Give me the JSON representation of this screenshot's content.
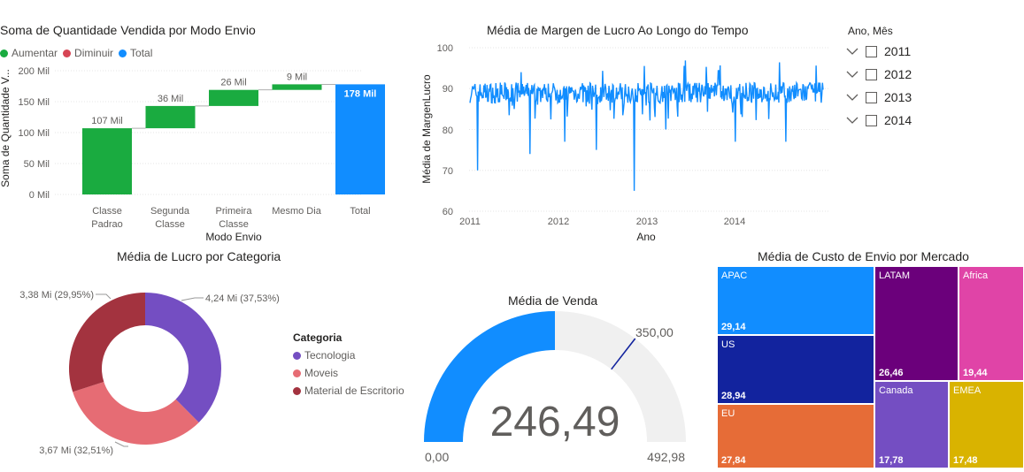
{
  "waterfall": {
    "title": "Soma de Quantidade Vendida por Modo Envio",
    "legend": [
      {
        "label": "Aumentar",
        "color": "#1aab40"
      },
      {
        "label": "Diminuir",
        "color": "#d64554"
      },
      {
        "label": "Total",
        "color": "#118dff"
      }
    ],
    "y_title": "Soma de Quantidade V...",
    "x_title": "Modo Envio",
    "y_ticks": [
      "200 Mil",
      "150 Mil",
      "100 Mil",
      "50 Mil",
      "0 Mil"
    ],
    "cat_lines": [
      [
        "Classe",
        "Padrao"
      ],
      [
        "Segunda",
        "Classe"
      ],
      [
        "Primeira",
        "Classe"
      ],
      [
        "Mesmo Dia",
        ""
      ],
      [
        "Total",
        ""
      ]
    ]
  },
  "line": {
    "title": "Média de Margen de Lucro Ao Longo do Tempo",
    "y_title": "Média de MargenLucro",
    "x_title": "Ano",
    "y_ticks": [
      "100",
      "90",
      "80",
      "70",
      "60"
    ],
    "x_ticks": [
      "2011",
      "2012",
      "2013",
      "2014"
    ],
    "color": "#118dff"
  },
  "slicer": {
    "title": "Ano, Mês",
    "items": [
      "2011",
      "2012",
      "2013",
      "2014"
    ]
  },
  "donut": {
    "title": "Média de Lucro por Categoria",
    "legend_title": "Categoria",
    "slice_labels": [
      "4,24 Mi (37,53%)",
      "3,67 Mi (32,51%)",
      "3,38 Mi (29,95%)"
    ],
    "legend": [
      {
        "label": "Tecnologia",
        "color": "#744ec2"
      },
      {
        "label": "Moveis",
        "color": "#e66c74"
      },
      {
        "label": "Material de Escritorio",
        "color": "#a3333f"
      }
    ]
  },
  "gauge": {
    "title": "Média de Venda",
    "value_text": "246,49",
    "min_text": "0,00",
    "max_text": "492,98",
    "target_text": "350,00",
    "fill_color": "#118dff",
    "track_color": "#f0f0f0"
  },
  "treemap": {
    "title": "Média de Custo de Envio por Mercado",
    "cells": [
      {
        "label": "APAC",
        "value": "29,14",
        "color": "#118dff"
      },
      {
        "label": "US",
        "value": "28,94",
        "color": "#12239e"
      },
      {
        "label": "EU",
        "value": "27,84",
        "color": "#e66c37"
      },
      {
        "label": "LATAM",
        "value": "26,46",
        "color": "#6b007b"
      },
      {
        "label": "Africa",
        "value": "19,44",
        "color": "#e044a7"
      },
      {
        "label": "Canada",
        "value": "17,78",
        "color": "#744ec2"
      },
      {
        "label": "EMEA",
        "value": "17,48",
        "color": "#d9b300"
      }
    ]
  },
  "chart_data": [
    {
      "type": "bar",
      "title": "Soma de Quantidade Vendida por Modo Envio",
      "xlabel": "Modo Envio",
      "ylabel": "Soma de Quantidade V...",
      "categories": [
        "Classe Padrao",
        "Segunda Classe",
        "Primeira Classe",
        "Mesmo Dia",
        "Total"
      ],
      "values": [
        107,
        36,
        26,
        9,
        178
      ],
      "data_labels": [
        "107 Mil",
        "36 Mil",
        "26 Mil",
        "9 Mil",
        "178 Mil"
      ],
      "ylim": [
        0,
        200
      ]
    },
    {
      "type": "line",
      "title": "Média de Margen de Lucro Ao Longo do Tempo",
      "xlabel": "Ano",
      "ylabel": "Média de MargenLucro",
      "ylim": [
        60,
        100
      ],
      "x_range": [
        "2011",
        "2014"
      ],
      "series": [
        {
          "values_summary": {
            "typical": 89,
            "min": 65,
            "max": 98
          }
        }
      ]
    },
    {
      "type": "pie",
      "title": "Média de Lucro por Categoria",
      "categories": [
        "Tecnologia",
        "Moveis",
        "Material de Escritorio"
      ],
      "values": [
        37.53,
        32.51,
        29.95
      ]
    },
    {
      "type": "bar",
      "title": "Média de Custo de Envio por Mercado",
      "categories": [
        "APAC",
        "US",
        "EU",
        "LATAM",
        "Africa",
        "Canada",
        "EMEA"
      ],
      "values": [
        29.14,
        28.94,
        27.84,
        26.46,
        19.44,
        17.78,
        17.48
      ]
    }
  ]
}
